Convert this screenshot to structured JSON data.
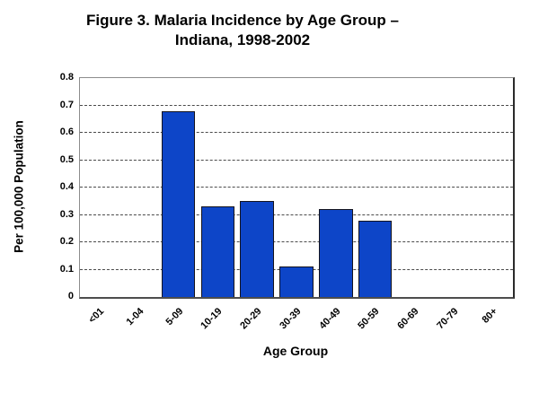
{
  "title": {
    "line1": "Figure 3. Malaria Incidence by Age Group –",
    "line2": "Indiana, 1998-2002"
  },
  "chart_data": {
    "type": "bar",
    "title": "Figure 3. Malaria Incidence by Age Group – Indiana, 1998-2002",
    "categories": [
      "<01",
      "1-04",
      "5-09",
      "10-19",
      "20-29",
      "30-39",
      "40-49",
      "50-59",
      "60-69",
      "70-79",
      "80+"
    ],
    "values": [
      0,
      0,
      0.68,
      0.33,
      0.35,
      0.11,
      0.32,
      0.28,
      0,
      0,
      0
    ],
    "xlabel": "Age Group",
    "ylabel": "Per 100,000 Population",
    "ylim": [
      0,
      0.8
    ],
    "yticks": [
      0,
      0.1,
      0.2,
      0.3,
      0.4,
      0.5,
      0.6,
      0.7,
      0.8
    ],
    "grid": "horizontal-dashed",
    "legend_position": "none",
    "bar_color": "#0d45c8",
    "bar_border_color": "#14141e",
    "gridline_color": "#4a4a4a"
  }
}
